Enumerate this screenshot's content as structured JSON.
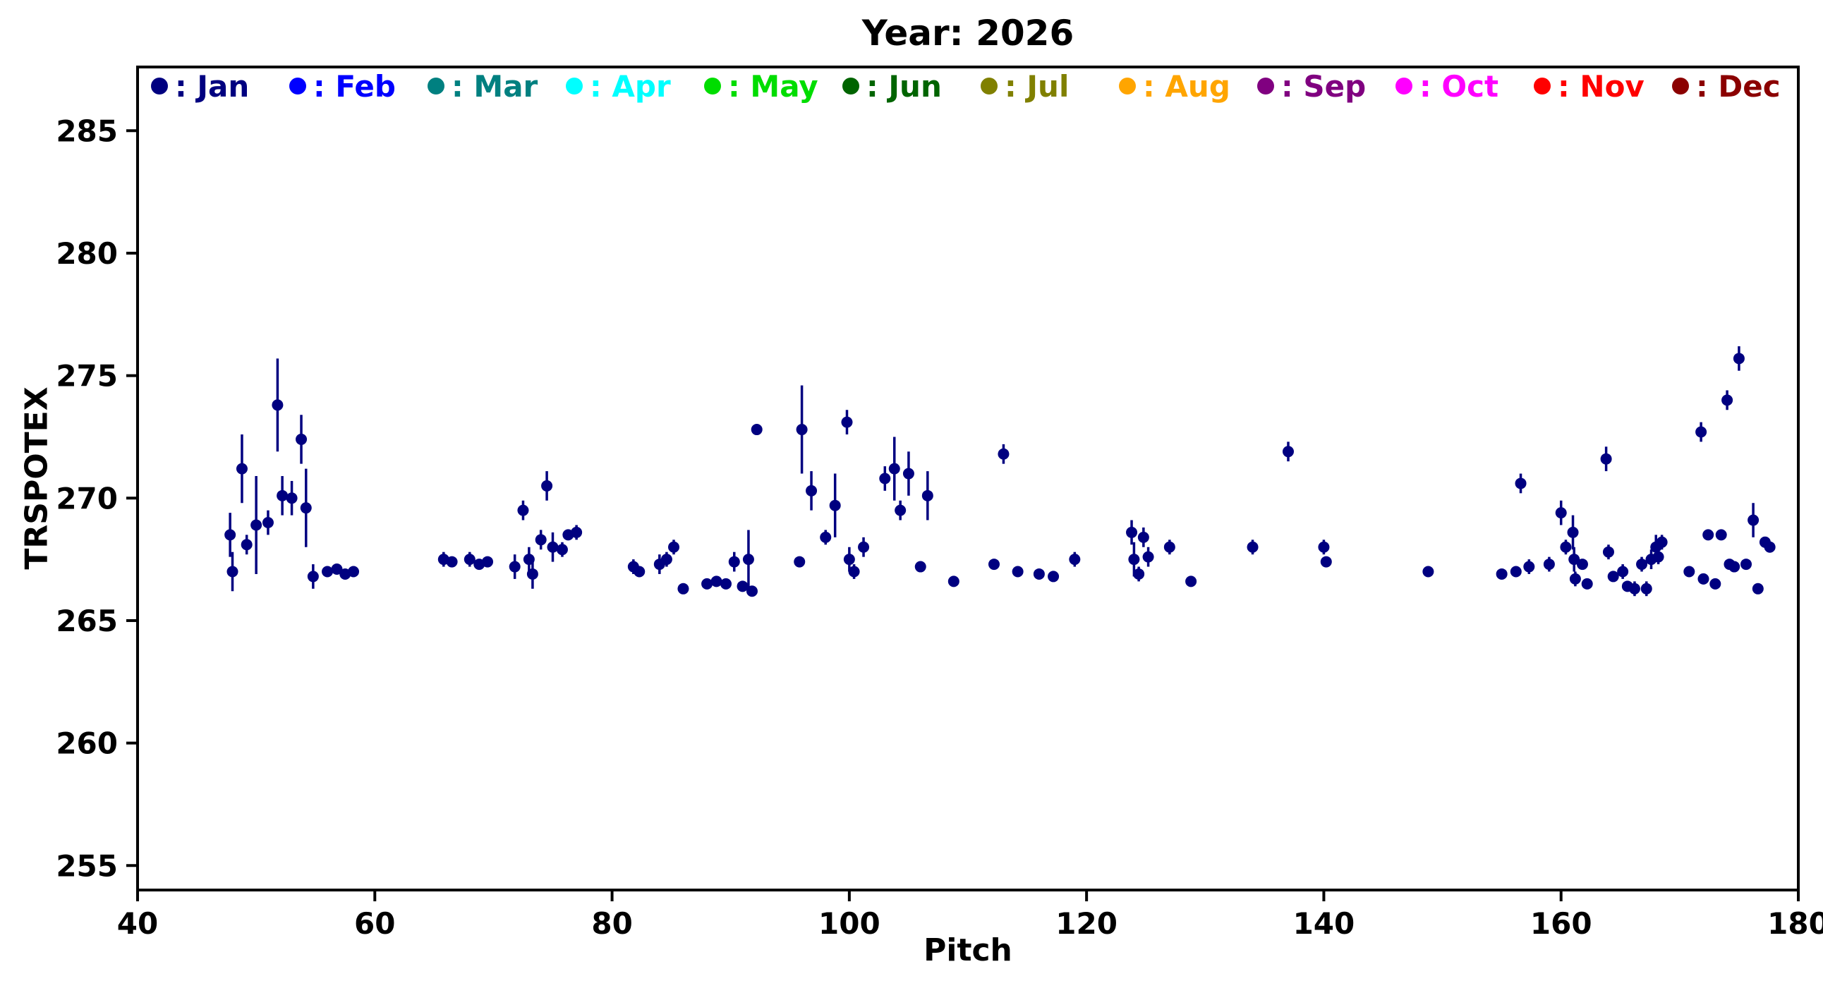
{
  "chart_data": {
    "type": "scatter",
    "title": "Year: 2026",
    "xlabel": "Pitch",
    "ylabel": "TRSPOTEX",
    "xlim": [
      40,
      180
    ],
    "ylim": [
      254.0,
      287.6
    ],
    "x_ticks": [
      40,
      60,
      80,
      100,
      120,
      140,
      160,
      180
    ],
    "y_ticks": [
      255,
      260,
      265,
      270,
      275,
      280,
      285
    ],
    "grid": false,
    "legend_position": "top-inside",
    "legend_prefix": ": ",
    "months": [
      {
        "label": "Jan",
        "color": "#000080"
      },
      {
        "label": "Feb",
        "color": "#0000FF"
      },
      {
        "label": "Mar",
        "color": "#008080"
      },
      {
        "label": "Apr",
        "color": "#00FFFF"
      },
      {
        "label": "May",
        "color": "#00DD00"
      },
      {
        "label": "Jun",
        "color": "#006400"
      },
      {
        "label": "Jul",
        "color": "#808000"
      },
      {
        "label": "Aug",
        "color": "#FFA500"
      },
      {
        "label": "Sep",
        "color": "#800080"
      },
      {
        "label": "Oct",
        "color": "#FF00FF"
      },
      {
        "label": "Nov",
        "color": "#FF0000"
      },
      {
        "label": "Dec",
        "color": "#8B0000"
      }
    ],
    "points_month": "Jan",
    "point_color": "#000080",
    "points": [
      [
        47.8,
        268.5,
        0.9
      ],
      [
        48.0,
        267.0,
        0.8
      ],
      [
        48.8,
        271.2,
        1.4
      ],
      [
        49.2,
        268.1,
        0.4
      ],
      [
        50.0,
        268.9,
        2.0
      ],
      [
        51.0,
        269.0,
        0.5
      ],
      [
        51.8,
        273.8,
        1.9
      ],
      [
        52.2,
        270.1,
        0.8
      ],
      [
        53.0,
        270.0,
        0.7
      ],
      [
        53.8,
        272.4,
        1.0
      ],
      [
        54.2,
        269.6,
        1.6
      ],
      [
        54.8,
        266.8,
        0.5
      ],
      [
        56.0,
        267.0,
        0.2
      ],
      [
        56.8,
        267.1,
        0.2
      ],
      [
        57.5,
        266.9,
        0.2
      ],
      [
        58.2,
        267.0,
        0.2
      ],
      [
        65.8,
        267.5,
        0.3
      ],
      [
        66.5,
        267.4,
        0.2
      ],
      [
        68.0,
        267.5,
        0.3
      ],
      [
        68.8,
        267.3,
        0.2
      ],
      [
        69.5,
        267.4,
        0.2
      ],
      [
        71.8,
        267.2,
        0.5
      ],
      [
        72.5,
        269.5,
        0.4
      ],
      [
        73.0,
        267.5,
        0.5
      ],
      [
        73.3,
        266.9,
        0.6
      ],
      [
        74.0,
        268.3,
        0.4
      ],
      [
        74.5,
        270.5,
        0.6
      ],
      [
        75.0,
        268.0,
        0.6
      ],
      [
        75.8,
        267.9,
        0.3
      ],
      [
        76.3,
        268.5,
        0.2
      ],
      [
        77.0,
        268.6,
        0.3
      ],
      [
        81.8,
        267.2,
        0.3
      ],
      [
        82.3,
        267.0,
        0.2
      ],
      [
        84.0,
        267.3,
        0.4
      ],
      [
        84.6,
        267.5,
        0.3
      ],
      [
        85.2,
        268.0,
        0.3
      ],
      [
        86.0,
        266.3,
        0.2
      ],
      [
        88.0,
        266.5,
        0.2
      ],
      [
        88.8,
        266.6,
        0.2
      ],
      [
        89.6,
        266.5,
        0.2
      ],
      [
        90.3,
        267.4,
        0.4
      ],
      [
        91.0,
        266.4,
        0.2
      ],
      [
        91.5,
        267.5,
        1.2
      ],
      [
        91.8,
        266.2,
        0.2
      ],
      [
        92.2,
        272.8,
        0.2
      ],
      [
        95.8,
        267.4,
        0.2
      ],
      [
        96.0,
        272.8,
        1.8
      ],
      [
        96.8,
        270.3,
        0.8
      ],
      [
        98.0,
        268.4,
        0.3
      ],
      [
        98.8,
        269.7,
        1.3
      ],
      [
        99.8,
        273.1,
        0.5
      ],
      [
        100.0,
        267.5,
        0.5
      ],
      [
        100.4,
        267.0,
        0.3
      ],
      [
        101.2,
        268.0,
        0.4
      ],
      [
        103.0,
        270.8,
        0.5
      ],
      [
        103.8,
        271.2,
        1.3
      ],
      [
        104.3,
        269.5,
        0.4
      ],
      [
        105.0,
        271.0,
        0.9
      ],
      [
        106.0,
        267.2,
        0.2
      ],
      [
        106.6,
        270.1,
        1.0
      ],
      [
        108.8,
        266.6,
        0.2
      ],
      [
        112.2,
        267.3,
        0.2
      ],
      [
        113.0,
        271.8,
        0.4
      ],
      [
        114.2,
        267.0,
        0.2
      ],
      [
        116.0,
        266.9,
        0.2
      ],
      [
        117.2,
        266.8,
        0.2
      ],
      [
        119.0,
        267.5,
        0.3
      ],
      [
        123.8,
        268.6,
        0.5
      ],
      [
        124.0,
        267.5,
        0.7
      ],
      [
        124.4,
        266.9,
        0.3
      ],
      [
        124.8,
        268.4,
        0.4
      ],
      [
        125.2,
        267.6,
        0.4
      ],
      [
        127.0,
        268.0,
        0.3
      ],
      [
        128.8,
        266.6,
        0.2
      ],
      [
        134.0,
        268.0,
        0.3
      ],
      [
        137.0,
        271.9,
        0.4
      ],
      [
        140.0,
        268.0,
        0.3
      ],
      [
        140.2,
        267.4,
        0.2
      ],
      [
        148.8,
        267.0,
        0.2
      ],
      [
        155.0,
        266.9,
        0.2
      ],
      [
        156.2,
        267.0,
        0.2
      ],
      [
        156.6,
        270.6,
        0.4
      ],
      [
        157.3,
        267.2,
        0.3
      ],
      [
        159.0,
        267.3,
        0.3
      ],
      [
        160.0,
        269.4,
        0.5
      ],
      [
        160.4,
        268.0,
        0.3
      ],
      [
        161.0,
        268.6,
        0.7
      ],
      [
        161.1,
        267.5,
        0.5
      ],
      [
        161.2,
        266.7,
        0.3
      ],
      [
        161.8,
        267.3,
        0.2
      ],
      [
        162.2,
        266.5,
        0.2
      ],
      [
        163.8,
        271.6,
        0.5
      ],
      [
        164.0,
        267.8,
        0.3
      ],
      [
        164.4,
        266.8,
        0.2
      ],
      [
        165.2,
        267.0,
        0.3
      ],
      [
        165.6,
        266.4,
        0.2
      ],
      [
        166.2,
        266.3,
        0.3
      ],
      [
        166.8,
        267.3,
        0.3
      ],
      [
        167.2,
        266.3,
        0.3
      ],
      [
        167.6,
        267.5,
        0.4
      ],
      [
        168.0,
        268.0,
        0.5
      ],
      [
        168.2,
        267.6,
        0.3
      ],
      [
        168.5,
        268.2,
        0.3
      ],
      [
        170.8,
        267.0,
        0.2
      ],
      [
        171.8,
        272.7,
        0.4
      ],
      [
        172.0,
        266.7,
        0.2
      ],
      [
        172.4,
        268.5,
        0.2
      ],
      [
        173.0,
        266.5,
        0.2
      ],
      [
        173.5,
        268.5,
        0.2
      ],
      [
        174.0,
        274.0,
        0.4
      ],
      [
        174.2,
        267.3,
        0.2
      ],
      [
        174.6,
        267.2,
        0.2
      ],
      [
        175.0,
        275.7,
        0.5
      ],
      [
        175.6,
        267.3,
        0.2
      ],
      [
        176.2,
        269.1,
        0.7
      ],
      [
        176.6,
        266.3,
        0.2
      ],
      [
        177.2,
        268.2,
        0.2
      ],
      [
        177.6,
        268.0,
        0.2
      ]
    ]
  }
}
